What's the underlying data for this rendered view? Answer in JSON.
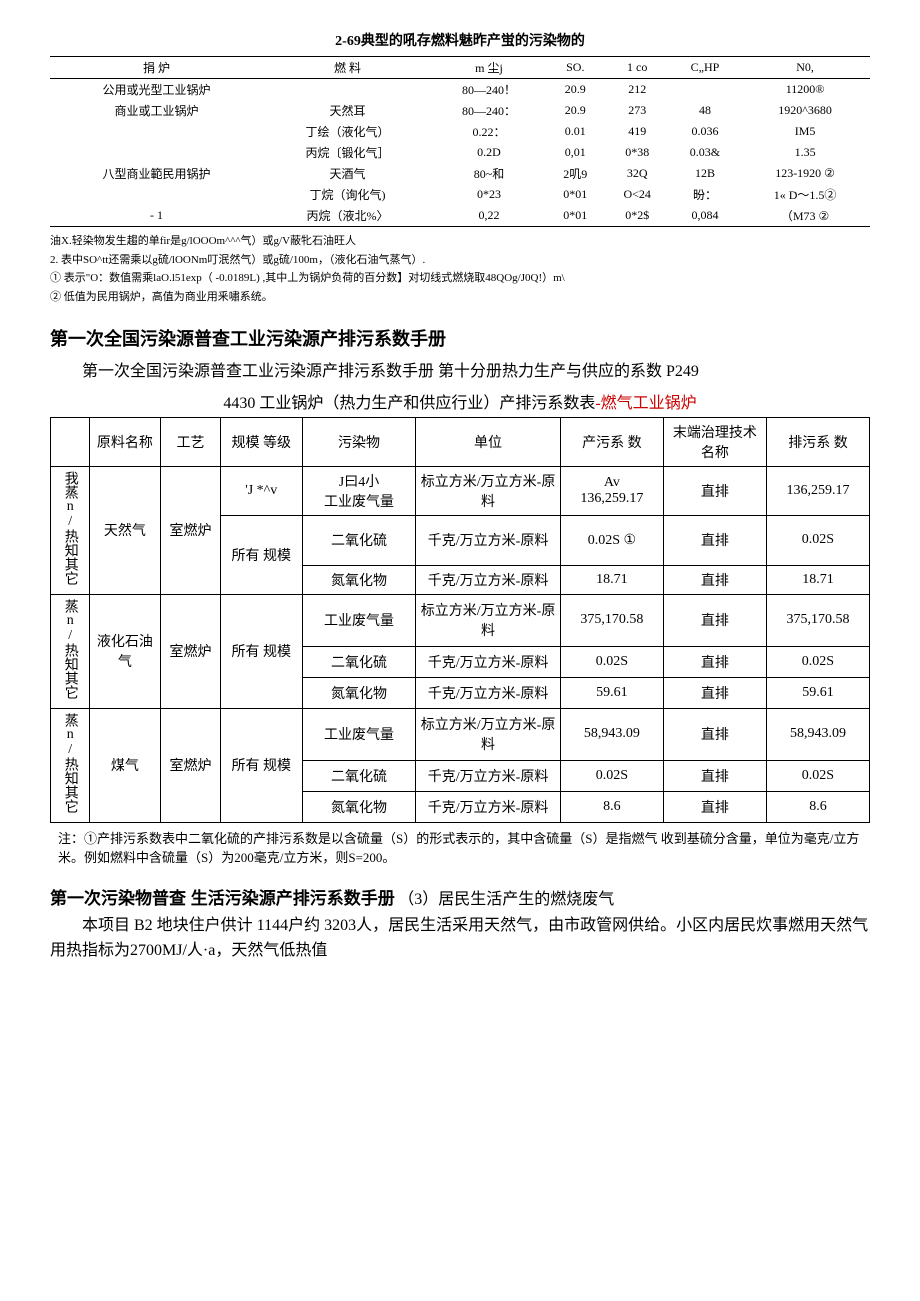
{
  "table69": {
    "title": "2-69典型的吼存燃料魅昨产蛍的污染物的",
    "headers": [
      "捐     炉",
      "燃   料",
      "m   尘j",
      "SO.",
      "1 co",
      "C„HP",
      "N0,"
    ],
    "rows": [
      [
        "公用或光型工业锅炉",
        "",
        "80—240！",
        "20.9",
        "212",
        "",
        "11200®"
      ],
      [
        "商业或工业锅炉",
        "天然耳",
        "80—240：",
        "20.9",
        "273",
        "48",
        "1920^3680"
      ],
      [
        "",
        "丁绘（液化气）",
        "0.22：",
        "0.01",
        "419",
        "0.036",
        "IM5"
      ],
      [
        "",
        "丙烷〔锻化气］",
        "0.2D",
        "0,01",
        "0*38",
        "0.03&",
        "1.35"
      ],
      [
        "八型商业範民用锅护",
        "天酒气",
        "80~和",
        "2叽9",
        "32Q",
        "12B",
        "123-1920 ②"
      ],
      [
        "",
        "丁烷（询化气)",
        "0*23",
        "0*01",
        "O<24",
        "昐：",
        "1« D～1.5②"
      ],
      [
        "- 1",
        "丙烷（液北%〉",
        "0,22",
        "0*01",
        "0*2$",
        "0,084",
        "（M73 ②"
      ]
    ],
    "notes": [
      "油X.轻染物发生趨的单fir是g/lOOOm^^^气）或g/V蔽牝石油旺人",
      "2. 表中SO^tt还需乘以g硫/lOONm叮泯然气）或g硫/100m，（液化石油气蒸气）.",
      "①          表示\"O：数值需乘laO.l51exp（ -0.0189L) ,其中丄为锅炉负荷的百分数】对切线式燃烧取48QOg/J0Q!）m\\",
      "②          低值为民用锅炉，高值为商业用釆嘯系统。"
    ]
  },
  "section1": {
    "heading": "第一次全国污染源普查工业污染源产排污系数手册",
    "para": "第一次全国污染源普查工业污染源产排污系数手册 第十分册热力生产与供应的系数 P249",
    "subtitle_plain": "4430 工业锅炉（热力生产和供应行业）产排污系数表",
    "subtitle_red": "-燃气工业锅炉"
  },
  "table4430": {
    "headers": [
      "",
      "原料名称",
      "工艺",
      "规模 等级",
      "污染物",
      "单位",
      "产污系 数",
      "末端治理技术名称",
      "排污系 数"
    ],
    "groups": [
      {
        "vlabel": "我蒸n/热知其它",
        "material": "天然气",
        "tech": "室燃炉",
        "scaleTop": "'J *^v",
        "scaleRest": "所有 规模",
        "rows": [
          {
            "pollTop": "J曰4小",
            "pollutant": "工业废气量",
            "unit": "标立方米/万立方米-原料",
            "coefTop": "Av",
            "coef": "136,259.17",
            "end": "直排",
            "emit": "136,259.17"
          },
          {
            "pollutant": "二氧化硫",
            "unit": "千克/万立方米-原料",
            "coef": "0.02S ①",
            "end": "直排",
            "emit": "0.02S"
          },
          {
            "pollutant": "氮氧化物",
            "unit": "千克/万立方米-原料",
            "coef": "18.71",
            "end": "直排",
            "emit": "18.71"
          }
        ]
      },
      {
        "vlabel": "蒸n/热知其它",
        "material": "液化石油气",
        "tech": "室燃炉",
        "scaleRest": "所有 规模",
        "rows": [
          {
            "pollutant": "工业废气量",
            "unit": "标立方米/万立方米-原料",
            "coef": "375,170.58",
            "end": "直排",
            "emit": "375,170.58"
          },
          {
            "pollutant": "二氧化硫",
            "unit": "千克/万立方米-原料",
            "coef": "0.02S",
            "end": "直排",
            "emit": "0.02S"
          },
          {
            "pollutant": "氮氧化物",
            "unit": "千克/万立方米-原料",
            "coef": "59.61",
            "end": "直排",
            "emit": "59.61"
          }
        ]
      },
      {
        "vlabel": "蒸n/热知其它",
        "material": "煤气",
        "tech": "室燃炉",
        "scaleRest": "所有 规模",
        "rows": [
          {
            "pollutant": "工业废气量",
            "unit": "标立方米/万立方米-原料",
            "coef": "58,943.09",
            "end": "直排",
            "emit": "58,943.09"
          },
          {
            "pollutant": "二氧化硫",
            "unit": "千克/万立方米-原料",
            "coef": "0.02S",
            "end": "直排",
            "emit": "0.02S"
          },
          {
            "pollutant": "氮氧化物",
            "unit": "千克/万立方米-原料",
            "coef": "8.6",
            "end": "直排",
            "emit": "8.6"
          }
        ]
      }
    ],
    "note": "注：①产排污系数表中二氧化硫的产排污系数是以含硫量（S）的形式表示的，其中含硫量（S）是指燃气 收到基硫分含量，单位为毫克/立方米。例如燃料中含硫量（S）为200毫克/立方米，则S=200。"
  },
  "section2": {
    "heading": "第一次污染物普查 生活污染源产排污系数手册",
    "suffix": "（3）居民生活产生的燃烧废气",
    "para": "本项目 B2 地块住户供计 1144户约 3203人，居民生活采用天然气，由市政管网供给。小区内居民炊事燃用天然气用热指标为2700MJ/人·a，天然气低热值"
  }
}
